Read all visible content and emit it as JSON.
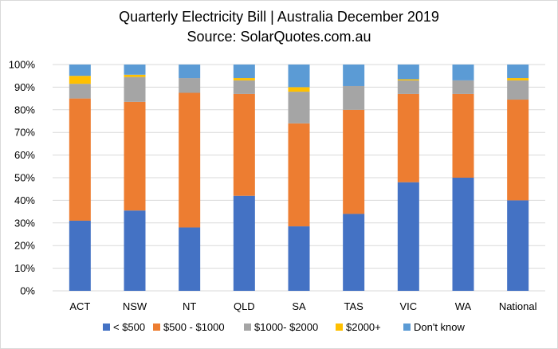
{
  "chart_data": {
    "type": "bar",
    "stacked": true,
    "title": "Quarterly Electricity Bill | Australia December 2019",
    "subtitle": "Source: SolarQuotes.com.au",
    "xlabel": "",
    "ylabel": "",
    "ylim": [
      0,
      100
    ],
    "yticks": [
      "0%",
      "10%",
      "20%",
      "30%",
      "40%",
      "50%",
      "60%",
      "70%",
      "80%",
      "90%",
      "100%"
    ],
    "categories": [
      "ACT",
      "NSW",
      "NT",
      "QLD",
      "SA",
      "TAS",
      "VIC",
      "WA",
      "National"
    ],
    "series": [
      {
        "name": "< $500",
        "color": "#4472C4",
        "values": [
          31,
          35.5,
          28,
          42,
          28.5,
          34,
          48,
          50,
          40
        ]
      },
      {
        "name": "$500 - $1000",
        "color": "#ED7D31",
        "values": [
          54,
          48,
          59.5,
          45,
          45.5,
          46,
          39,
          37,
          44.5
        ]
      },
      {
        "name": "$1000- $2000",
        "color": "#A5A5A5",
        "values": [
          6.5,
          11,
          6.5,
          6,
          14,
          10.5,
          6,
          6,
          8.5
        ]
      },
      {
        "name": "$2000+",
        "color": "#FFC000",
        "values": [
          3.5,
          1,
          0,
          1,
          2,
          0,
          0.5,
          0,
          1
        ]
      },
      {
        "name": "Don't know",
        "color": "#5B9BD5",
        "values": [
          5,
          4.5,
          6,
          6,
          10,
          9.5,
          6.5,
          7,
          6
        ]
      }
    ],
    "grid": true,
    "legend": "bottom"
  }
}
